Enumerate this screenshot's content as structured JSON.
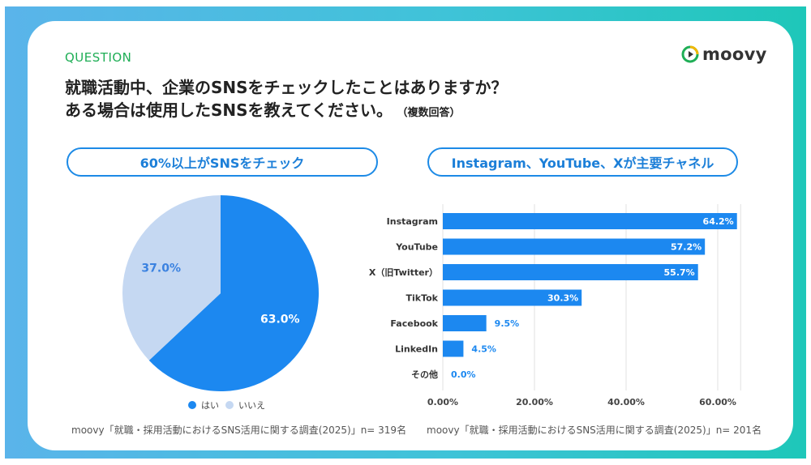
{
  "header": {
    "label": "QUESTION",
    "title_line1": "就職活動中、企業のSNSをチェックしたことはありますか？",
    "title_line2": "ある場合は使用したSNSを教えてください。",
    "note": "（複数回答）",
    "logo_text": "moovy",
    "logo_icon": "play-circle-icon"
  },
  "left_panel": {
    "headline": "60%以上がSNSをチェック",
    "source": "moovy「就職・採用活動におけるSNS活用に関する調査(2025)」n= 319名"
  },
  "right_panel": {
    "headline": "Instagram、YouTube、Xが主要チャネル",
    "source": "moovy「就職・採用活動におけるSNS活用に関する調査(2025)」n= 201名"
  },
  "colors": {
    "primary": "#1c88f0",
    "secondary": "#c5d8f2",
    "question": "#1fae56",
    "frame_start": "#5ab4ea",
    "frame_end": "#1ec7b9"
  },
  "chart_data": [
    {
      "type": "pie",
      "slices": [
        {
          "label": "はい",
          "value": 63.0,
          "display": "63.0%",
          "color": "#1c88f0"
        },
        {
          "label": "いいえ",
          "value": 37.0,
          "display": "37.0%",
          "color": "#c5d8f2"
        }
      ],
      "legend_position": "bottom"
    },
    {
      "type": "bar",
      "orientation": "horizontal",
      "categories": [
        "Instagram",
        "YouTube",
        "X（旧Twitter）",
        "TikTok",
        "Facebook",
        "LinkedIn",
        "その他"
      ],
      "values": [
        64.2,
        57.2,
        55.7,
        30.3,
        9.5,
        4.5,
        0.0
      ],
      "value_labels": [
        "64.2%",
        "57.2%",
        "55.7%",
        "30.3%",
        "9.5%",
        "4.5%",
        "0.0%"
      ],
      "xlim": [
        0,
        65
      ],
      "xticks": [
        0,
        20,
        40,
        60
      ],
      "xtick_labels": [
        "0.00%",
        "20.00%",
        "40.00%",
        "60.00%"
      ],
      "grid": true
    }
  ]
}
